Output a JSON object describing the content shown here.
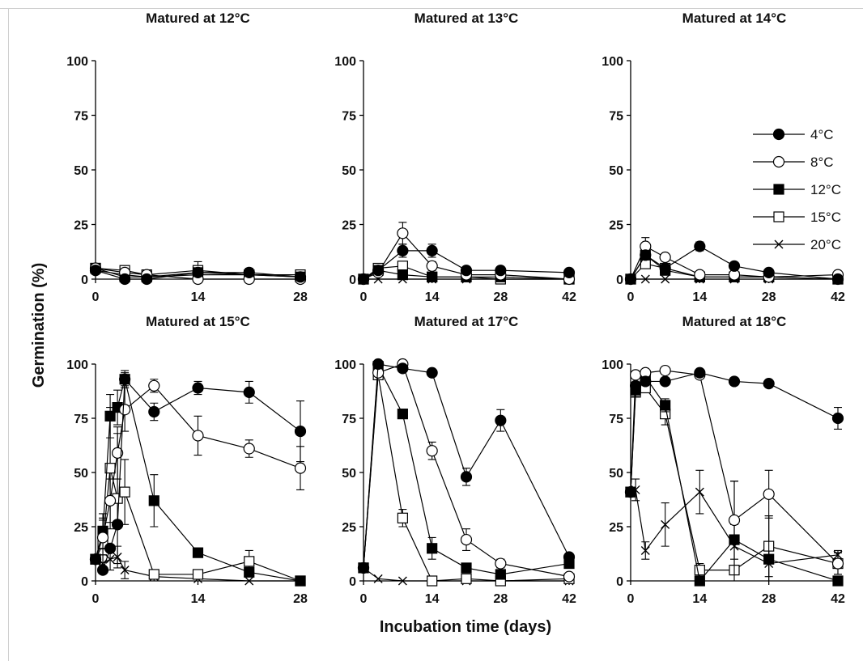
{
  "figure": {
    "ylabel": "Germination (%)",
    "xlabel": "Incubation time (days)"
  },
  "legend": [
    {
      "name": "4°C",
      "marker": "filled-circle"
    },
    {
      "name": "8°C",
      "marker": "open-circle"
    },
    {
      "name": "12°C",
      "marker": "filled-square"
    },
    {
      "name": "15°C",
      "marker": "open-square"
    },
    {
      "name": "20°C",
      "marker": "cross"
    }
  ],
  "chart_data": [
    {
      "type": "line",
      "title": "Matured at 12°C",
      "xlim": [
        0,
        28
      ],
      "xticks": [
        0,
        14,
        28
      ],
      "ylim": [
        0,
        100
      ],
      "yticks": [
        0,
        25,
        50,
        75,
        100
      ],
      "series": [
        {
          "name": "4°C",
          "x": [
            0,
            4,
            7,
            14,
            21,
            28
          ],
          "y": [
            4,
            0,
            0,
            3,
            3,
            1
          ],
          "err": [
            0,
            0,
            0,
            0,
            0,
            0
          ]
        },
        {
          "name": "8°C",
          "x": [
            0,
            4,
            7,
            14,
            21,
            28
          ],
          "y": [
            5,
            3,
            2,
            0,
            0,
            0
          ],
          "err": [
            0,
            0,
            0,
            0,
            0,
            0
          ]
        },
        {
          "name": "12°C",
          "x": [
            0,
            4,
            7,
            14,
            21,
            28
          ],
          "y": [
            5,
            1,
            1,
            3,
            2,
            1
          ],
          "err": [
            0,
            0,
            0,
            0,
            0,
            0
          ]
        },
        {
          "name": "15°C",
          "x": [
            0,
            4,
            7,
            14,
            21,
            28
          ],
          "y": [
            5,
            4,
            2,
            4,
            2,
            2
          ],
          "err": [
            0,
            0,
            0,
            4,
            3,
            2
          ]
        },
        {
          "name": "20°C",
          "x": [
            0,
            4,
            7,
            14,
            21,
            28
          ],
          "y": [
            4,
            2,
            1,
            2,
            2,
            1
          ],
          "err": [
            0,
            0,
            0,
            0,
            0,
            0
          ]
        }
      ]
    },
    {
      "type": "line",
      "title": "Matured at 13°C",
      "xlim": [
        0,
        42
      ],
      "xticks": [
        0,
        14,
        28,
        42
      ],
      "ylim": [
        0,
        100
      ],
      "yticks": [
        0,
        25,
        50,
        75,
        100
      ],
      "series": [
        {
          "name": "4°C",
          "x": [
            0,
            3,
            8,
            14,
            21,
            28,
            42
          ],
          "y": [
            0,
            4,
            13,
            13,
            4,
            4,
            3
          ],
          "err": [
            0,
            0,
            3,
            3,
            0,
            0,
            0
          ]
        },
        {
          "name": "8°C",
          "x": [
            0,
            3,
            8,
            14,
            21,
            28,
            42
          ],
          "y": [
            0,
            3,
            21,
            6,
            2,
            2,
            0
          ],
          "err": [
            0,
            0,
            5,
            2,
            0,
            0,
            0
          ]
        },
        {
          "name": "12°C",
          "x": [
            0,
            3,
            8,
            14,
            21,
            28,
            42
          ],
          "y": [
            0,
            4,
            2,
            1,
            1,
            1,
            0
          ],
          "err": [
            0,
            0,
            0,
            0,
            0,
            0,
            0
          ]
        },
        {
          "name": "15°C",
          "x": [
            0,
            3,
            8,
            14,
            21,
            28,
            42
          ],
          "y": [
            0,
            5,
            6,
            1,
            1,
            0,
            0
          ],
          "err": [
            0,
            0,
            2,
            0,
            0,
            0,
            0
          ]
        },
        {
          "name": "20°C",
          "x": [
            0,
            3,
            8,
            14,
            21,
            28,
            42
          ],
          "y": [
            0,
            0,
            0,
            0,
            0,
            0,
            0
          ],
          "err": [
            0,
            0,
            0,
            0,
            0,
            0,
            0
          ]
        }
      ]
    },
    {
      "type": "line",
      "title": "Matured at 14°C",
      "xlim": [
        0,
        42
      ],
      "xticks": [
        0,
        14,
        28,
        42
      ],
      "ylim": [
        0,
        100
      ],
      "yticks": [
        0,
        25,
        50,
        75,
        100
      ],
      "series": [
        {
          "name": "4°C",
          "x": [
            0,
            3,
            7,
            14,
            21,
            28,
            42
          ],
          "y": [
            0,
            11,
            5,
            15,
            6,
            3,
            0
          ],
          "err": [
            0,
            0,
            0,
            2,
            0,
            0,
            0
          ]
        },
        {
          "name": "8°C",
          "x": [
            0,
            3,
            7,
            14,
            21,
            28,
            42
          ],
          "y": [
            0,
            15,
            10,
            2,
            2,
            1,
            2
          ],
          "err": [
            0,
            4,
            0,
            0,
            0,
            0,
            0
          ]
        },
        {
          "name": "12°C",
          "x": [
            0,
            3,
            7,
            14,
            21,
            28,
            42
          ],
          "y": [
            0,
            11,
            4,
            1,
            1,
            1,
            0
          ],
          "err": [
            0,
            0,
            0,
            0,
            0,
            0,
            0
          ]
        },
        {
          "name": "15°C",
          "x": [
            0,
            3,
            7,
            14,
            21,
            28,
            42
          ],
          "y": [
            0,
            7,
            5,
            1,
            1,
            1,
            0
          ],
          "err": [
            0,
            0,
            0,
            0,
            0,
            0,
            0
          ]
        },
        {
          "name": "20°C",
          "x": [
            0,
            3,
            7,
            14,
            21,
            28,
            42
          ],
          "y": [
            0,
            0,
            0,
            0,
            0,
            0,
            0
          ],
          "err": [
            0,
            0,
            0,
            0,
            0,
            0,
            0
          ]
        }
      ]
    },
    {
      "type": "line",
      "title": "Matured at 15°C",
      "xlim": [
        0,
        28
      ],
      "xticks": [
        0,
        14,
        28
      ],
      "ylim": [
        0,
        100
      ],
      "yticks": [
        0,
        25,
        50,
        75,
        100
      ],
      "series": [
        {
          "name": "4°C",
          "x": [
            0,
            1,
            2,
            3,
            4,
            8,
            14,
            21,
            28
          ],
          "y": [
            10,
            5,
            15,
            26,
            93,
            78,
            89,
            87,
            69
          ],
          "err": [
            0,
            0,
            0,
            0,
            4,
            4,
            3,
            5,
            14
          ]
        },
        {
          "name": "8°C",
          "x": [
            0,
            1,
            2,
            3,
            4,
            8,
            14,
            21,
            28
          ],
          "y": [
            10,
            20,
            37,
            59,
            79,
            90,
            67,
            61,
            52
          ],
          "err": [
            0,
            8,
            10,
            12,
            10,
            3,
            9,
            4,
            10
          ]
        },
        {
          "name": "12°C",
          "x": [
            0,
            1,
            2,
            3,
            4,
            8,
            14,
            21,
            28
          ],
          "y": [
            10,
            23,
            76,
            80,
            93,
            37,
            13,
            4,
            0
          ],
          "err": [
            0,
            8,
            10,
            8,
            3,
            12,
            2,
            2,
            0
          ]
        },
        {
          "name": "15°C",
          "x": [
            0,
            1,
            2,
            3,
            4,
            8,
            14,
            21,
            28
          ],
          "y": [
            10,
            17,
            52,
            38,
            41,
            3,
            3,
            9,
            0
          ],
          "err": [
            0,
            12,
            28,
            30,
            15,
            2,
            2,
            5,
            0
          ]
        },
        {
          "name": "20°C",
          "x": [
            0,
            1,
            2,
            3,
            4,
            8,
            14,
            21,
            28
          ],
          "y": [
            10,
            8,
            10,
            11,
            5,
            2,
            1,
            0,
            0
          ],
          "err": [
            0,
            4,
            5,
            5,
            4,
            2,
            0,
            0,
            0
          ]
        }
      ]
    },
    {
      "type": "line",
      "title": "Matured at 17°C",
      "xlim": [
        0,
        42
      ],
      "xticks": [
        0,
        14,
        28,
        42
      ],
      "ylim": [
        0,
        100
      ],
      "yticks": [
        0,
        25,
        50,
        75,
        100
      ],
      "series": [
        {
          "name": "4°C",
          "x": [
            0,
            3,
            8,
            14,
            21,
            28,
            42
          ],
          "y": [
            6,
            100,
            98,
            96,
            48,
            74,
            11
          ],
          "err": [
            0,
            0,
            0,
            0,
            4,
            5,
            0
          ]
        },
        {
          "name": "8°C",
          "x": [
            0,
            3,
            8,
            14,
            21,
            28,
            42
          ],
          "y": [
            6,
            96,
            100,
            60,
            19,
            8,
            2
          ],
          "err": [
            0,
            0,
            0,
            4,
            5,
            2,
            0
          ]
        },
        {
          "name": "12°C",
          "x": [
            0,
            3,
            8,
            14,
            21,
            28,
            42
          ],
          "y": [
            6,
            99,
            77,
            15,
            6,
            3,
            8
          ],
          "err": [
            0,
            0,
            2,
            5,
            2,
            0,
            0
          ]
        },
        {
          "name": "15°C",
          "x": [
            0,
            3,
            8,
            14,
            21,
            28,
            42
          ],
          "y": [
            6,
            95,
            29,
            0,
            1,
            0,
            1
          ],
          "err": [
            0,
            0,
            4,
            0,
            0,
            0,
            0
          ]
        },
        {
          "name": "20°C",
          "x": [
            0,
            3,
            8,
            14,
            21,
            28,
            42
          ],
          "y": [
            6,
            1,
            0,
            0,
            0,
            0,
            0
          ],
          "err": [
            0,
            0,
            0,
            0,
            0,
            0,
            0
          ]
        }
      ]
    },
    {
      "type": "line",
      "title": "Matured at 18°C",
      "xlim": [
        0,
        42
      ],
      "xticks": [
        0,
        14,
        28,
        42
      ],
      "ylim": [
        0,
        100
      ],
      "yticks": [
        0,
        25,
        50,
        75,
        100
      ],
      "series": [
        {
          "name": "4°C",
          "x": [
            0,
            1,
            3,
            7,
            14,
            21,
            28,
            42
          ],
          "y": [
            41,
            90,
            92,
            92,
            96,
            92,
            91,
            75
          ],
          "err": [
            0,
            0,
            0,
            0,
            0,
            0,
            0,
            5
          ]
        },
        {
          "name": "8°C",
          "x": [
            0,
            1,
            3,
            7,
            14,
            21,
            28,
            42
          ],
          "y": [
            41,
            95,
            96,
            97,
            95,
            28,
            40,
            8
          ],
          "err": [
            0,
            0,
            0,
            0,
            0,
            18,
            11,
            5
          ]
        },
        {
          "name": "12°C",
          "x": [
            0,
            1,
            3,
            7,
            14,
            21,
            28,
            42
          ],
          "y": [
            41,
            88,
            94,
            81,
            0,
            19,
            10,
            0
          ],
          "err": [
            0,
            3,
            2,
            3,
            0,
            27,
            20,
            0
          ]
        },
        {
          "name": "15°C",
          "x": [
            0,
            1,
            3,
            7,
            14,
            21,
            28,
            42
          ],
          "y": [
            41,
            87,
            89,
            77,
            5,
            5,
            16,
            8
          ],
          "err": [
            0,
            2,
            2,
            5,
            3,
            0,
            14,
            5
          ]
        },
        {
          "name": "20°C",
          "x": [
            0,
            1,
            3,
            7,
            14,
            21,
            28,
            42
          ],
          "y": [
            41,
            42,
            14,
            26,
            41,
            16,
            8,
            12
          ],
          "err": [
            0,
            5,
            4,
            10,
            10,
            10,
            8,
            2
          ]
        }
      ]
    }
  ]
}
